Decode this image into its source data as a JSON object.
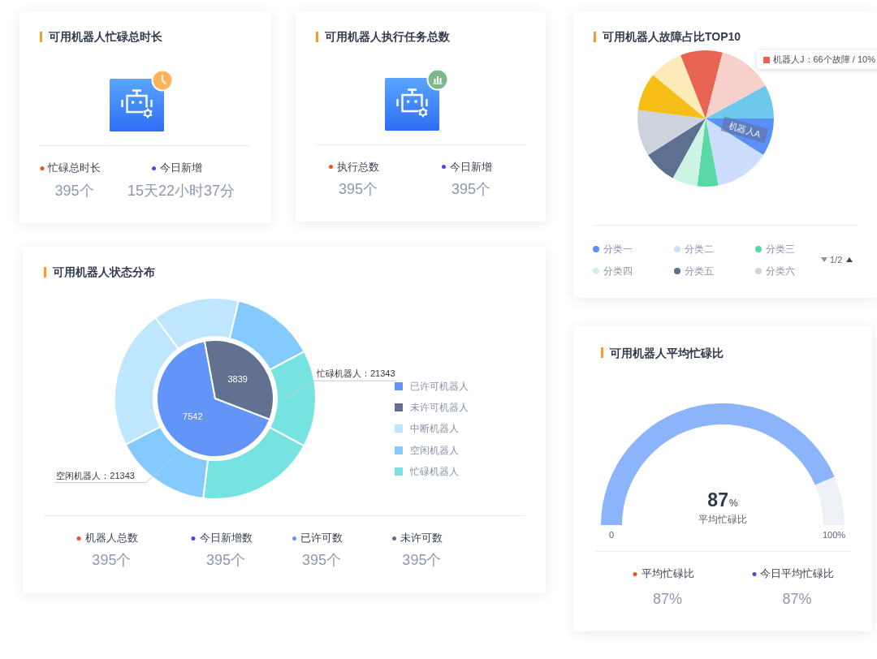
{
  "chart_data": [
    {
      "type": "other",
      "title": "可用机器人忙碌总时长",
      "categories": [
        "忙碌总时长",
        "今日新增"
      ],
      "value_labels": [
        "395个",
        "15天22小时37分"
      ]
    },
    {
      "type": "other",
      "title": "可用机器人执行任务总数",
      "categories": [
        "执行总数",
        "今日新增"
      ],
      "value_labels": [
        "395个",
        "395个"
      ]
    },
    {
      "type": "pie",
      "title": "可用机器人故障占比TOP10",
      "categories": [
        "分类一",
        "分类二",
        "分类三",
        "分类四",
        "分类五",
        "分类六",
        null,
        null,
        null,
        null,
        null
      ],
      "values": [
        9,
        13,
        5,
        6,
        8,
        11,
        9,
        8,
        10,
        13,
        8
      ],
      "colors": [
        "#5b8ff9",
        "#cdddfd",
        "#5ad8a6",
        "#cdf3e4",
        "#5d7092",
        "#ced4de",
        "#f6bd16",
        "#fcebb9",
        "#e86452",
        "#f8d0cb",
        "#6dc8ec"
      ],
      "legend": "bottom",
      "annotations": [
        "机器人A",
        "机器人J：66个故障 / 10%",
        "1/2"
      ]
    },
    {
      "type": "donut",
      "title": "可用机器人状态分布",
      "legend": "right",
      "categories": [
        "已许可机器人",
        "未许可机器人",
        "中断机器人",
        null,
        "空闲机器人",
        "忙碌机器人",
        null,
        null
      ],
      "series": [
        {
          "type": "pie",
          "values": [
            7542,
            3839,
            null,
            null,
            null,
            null,
            null,
            null
          ],
          "colors": [
            "#6395f9",
            "#61718f",
            null,
            null,
            null,
            null,
            null,
            null
          ],
          "data_labels": true
        },
        {
          "type": "donut",
          "values": [
            null,
            null,
            30900,
            19100,
            18600,
            21343,
            26300,
            21343
          ],
          "colors": [
            null,
            null,
            "#bee6fe",
            "#bee6fe",
            "#84cafe",
            "#77e3e1",
            "#77e3e1",
            "#84cafe"
          ],
          "value_labels": [
            null,
            null,
            null,
            null,
            null,
            "忙碌机器人：21343",
            null,
            "空闲机器人：21343"
          ]
        }
      ]
    },
    {
      "type": "other",
      "categories": [
        "机器人总数",
        "今日新增数",
        "已许可数",
        "未许可数"
      ],
      "value_labels": [
        "395个",
        "395个",
        "395个",
        "395个"
      ]
    },
    {
      "type": "donut",
      "title": "可用机器人平均忙碌比",
      "categories": [
        "平均忙碌比",
        null
      ],
      "values": [
        87,
        13
      ],
      "colors": [
        "#8cb4fa",
        "#edf0f5"
      ],
      "value_labels": [
        "87%",
        null
      ],
      "annotations": [
        "0",
        "100%"
      ]
    },
    {
      "type": "other",
      "categories": [
        "平均忙碌比",
        "今日平均忙碌比"
      ],
      "value_labels": [
        "87%",
        "87%"
      ]
    }
  ]
}
